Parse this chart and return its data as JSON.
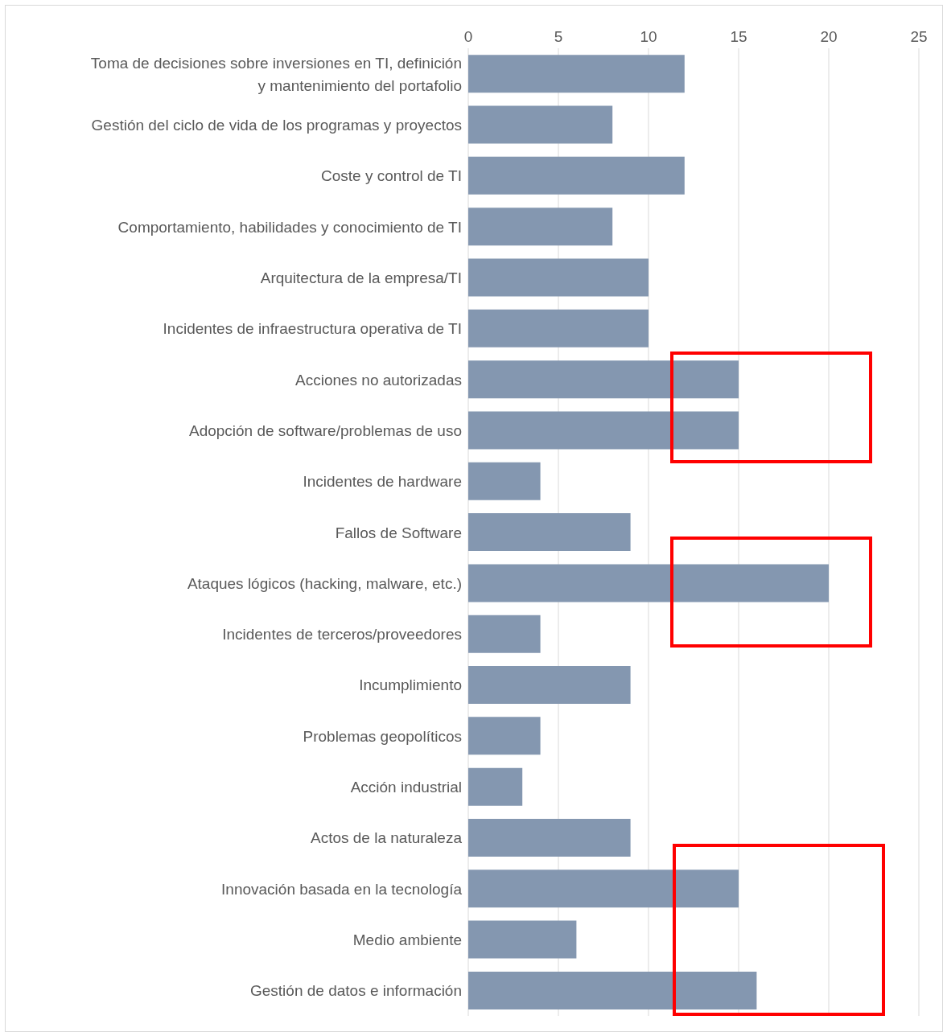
{
  "chart_data": {
    "type": "bar",
    "orientation": "horizontal",
    "categories": [
      "Toma de decisiones  sobre inversiones en TI, definición y mantenimiento del portafolio",
      "Gestión del ciclo de vida de los programas y proyectos",
      "Coste y control de TI",
      "Comportamiento, habilidades y conocimiento de TI",
      "Arquitectura de la empresa/TI ",
      "Incidentes de infraestructura operativa de TI",
      "Acciones no autorizadas",
      "Adopción de software/problemas de uso",
      "Incidentes de hardware",
      "Fallos de Software",
      "Ataques lógicos (hacking, malware, etc.)",
      "Incidentes de terceros/proveedores",
      "Incumplimiento",
      "Problemas geopolíticos",
      "Acción industrial",
      "Actos de la naturaleza",
      "Innovación basada en la tecnología ",
      "Medio ambiente",
      "Gestión de datos e información"
    ],
    "values": [
      12,
      8,
      12,
      8,
      10,
      10,
      15,
      15,
      4,
      9,
      20,
      4,
      9,
      4,
      3,
      9,
      15,
      6,
      16
    ],
    "color": "#8497b0",
    "xlim": [
      0,
      25
    ],
    "xticks": [
      0,
      5,
      10,
      15,
      20,
      25
    ],
    "grid": "x"
  }
}
